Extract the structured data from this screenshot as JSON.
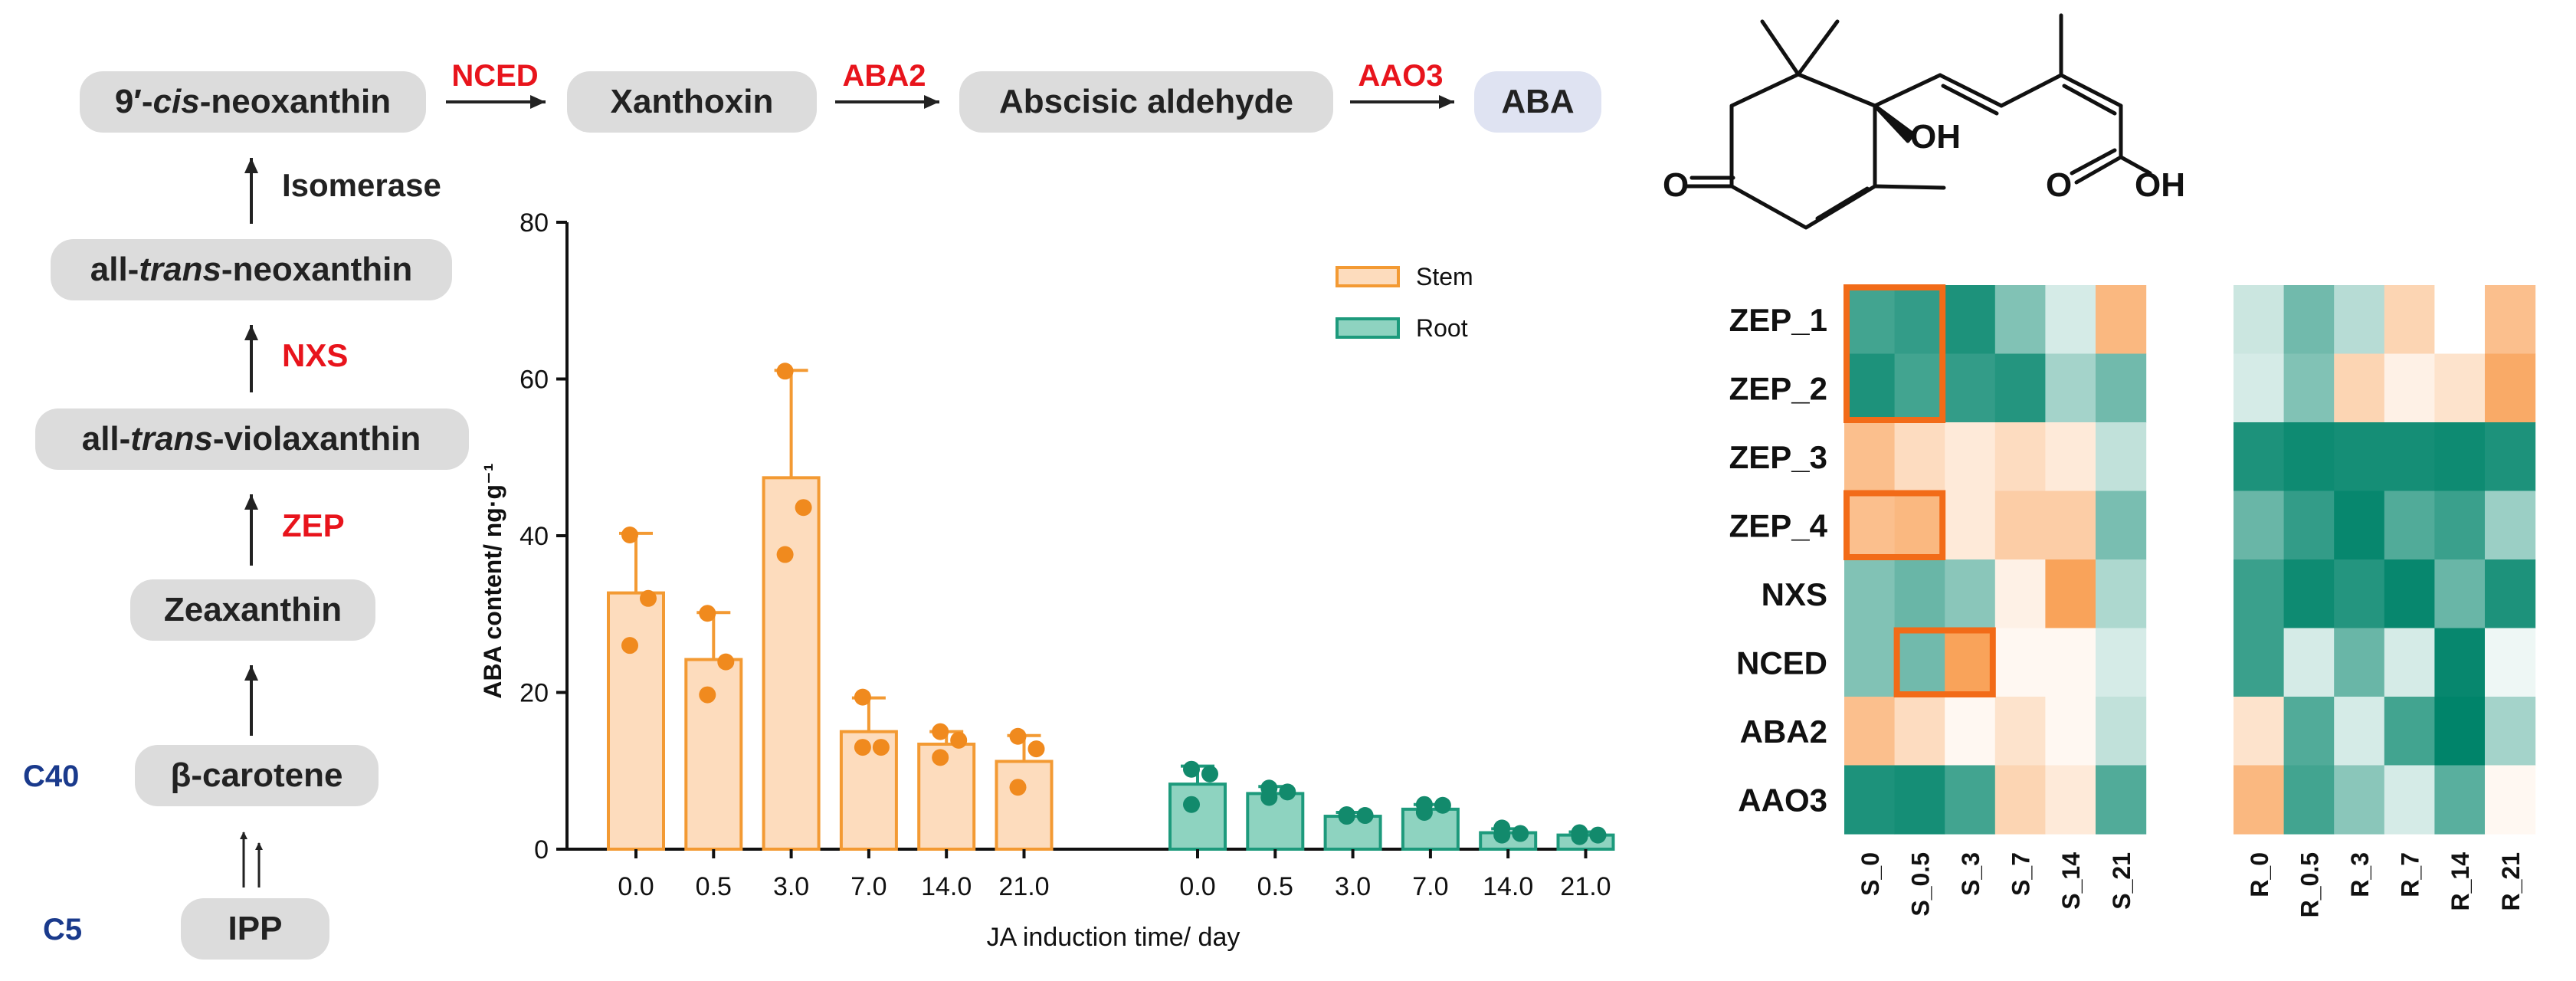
{
  "pathway": {
    "nodes": {
      "neoxanthin_9cis": {
        "pre": "9′-",
        "italic": "cis",
        "post": "-neoxanthin"
      },
      "xanthoxin": {
        "text": "Xanthoxin"
      },
      "abscisic_aldehyde": {
        "text": "Abscisic aldehyde"
      },
      "aba": {
        "text": "ABA"
      },
      "all_trans_neoxanthin": {
        "pre": "all-",
        "italic": "trans",
        "post": "-neoxanthin"
      },
      "all_trans_violaxanthin": {
        "pre": "all-",
        "italic": "trans",
        "post": "-violaxanthin"
      },
      "zeaxanthin": {
        "text": "Zeaxanthin"
      },
      "beta_carotene": {
        "text": "β-carotene"
      },
      "ipp": {
        "text": "IPP"
      }
    },
    "enzymes": {
      "nced": "NCED",
      "aba2": "ABA2",
      "aao3": "AAO3",
      "isomerase": "Isomerase",
      "nxs": "NXS",
      "zep": "ZEP"
    },
    "carbon_labels": {
      "c40": "C40",
      "c5": "C5"
    }
  },
  "structure": {
    "oh_label": "OH",
    "o_label": "O",
    "cooh_o": "O",
    "cooh_oh": "OH"
  },
  "chart_data": [
    {
      "type": "bar",
      "title": "",
      "xlabel": "JA induction time/ day",
      "ylabel": "ABA content/ ng·g⁻¹",
      "ylim": [
        0,
        80
      ],
      "yticks": [
        "0",
        "20",
        "40",
        "60",
        "80"
      ],
      "legend": {
        "placement": "top-right"
      },
      "series": [
        {
          "name": "Stem",
          "categories": [
            "0.0",
            "0.5",
            "3.0",
            "7.0",
            "14.0",
            "21.0"
          ],
          "values": [
            32.7,
            24.2,
            47.4,
            15.0,
            13.4,
            11.2
          ],
          "errors": [
            7.6,
            6.0,
            13.7,
            4.3,
            1.6,
            3.3
          ],
          "points": [
            [
              40.1,
              32.0,
              26.0
            ],
            [
              30.1,
              23.9,
              19.7
            ],
            [
              61.0,
              43.6,
              37.6
            ],
            [
              19.4,
              13.0,
              13.0
            ],
            [
              15.0,
              13.9,
              11.7
            ],
            [
              14.4,
              12.8,
              7.9
            ]
          ],
          "fill": "#fddcbd",
          "stroke": "#f39a33",
          "dot": "#f08a1e"
        },
        {
          "name": "Root",
          "categories": [
            "0.0",
            "0.5",
            "3.0",
            "7.0",
            "14.0",
            "21.0"
          ],
          "values": [
            8.3,
            7.1,
            4.2,
            5.1,
            2.1,
            1.8
          ],
          "errors": [
            2.3,
            0.9,
            0.5,
            0.6,
            0.5,
            0.4
          ],
          "points": [
            [
              10.2,
              9.6,
              5.7
            ],
            [
              7.8,
              7.3,
              6.6
            ],
            [
              4.4,
              4.3,
              4.2
            ],
            [
              5.7,
              5.6,
              4.7
            ],
            [
              2.7,
              2.0,
              1.8
            ],
            [
              2.1,
              1.8,
              1.6
            ]
          ],
          "fill": "#8ed3c0",
          "stroke": "#1d9a7c",
          "dot": "#128a6c"
        }
      ]
    },
    {
      "type": "heatmap",
      "title": "",
      "rows": [
        "ZEP_1",
        "ZEP_2",
        "ZEP_3",
        "ZEP_4",
        "NXS",
        "NCED",
        "ABA2",
        "AAO3"
      ],
      "columns_stem": [
        "S_0",
        "S_0.5",
        "S_3",
        "S_7",
        "S_14",
        "S_21"
      ],
      "columns_root": [
        "R_0",
        "R_0.5",
        "R_3",
        "R_7",
        "R_14",
        "R_21"
      ],
      "scale_note": "per-row z-score; negative = orange, positive = green",
      "stem_values": [
        [
          2.0,
          2.2,
          2.5,
          1.2,
          0.3,
          -1.0
        ],
        [
          2.5,
          2.0,
          2.2,
          2.4,
          0.8,
          1.4
        ],
        [
          -0.9,
          -0.5,
          -0.3,
          -0.5,
          -0.3,
          0.5
        ],
        [
          -0.9,
          -1.0,
          -0.3,
          -0.7,
          -0.7,
          1.3
        ],
        [
          1.2,
          1.5,
          1.1,
          -0.2,
          -1.3,
          0.7
        ],
        [
          1.2,
          1.4,
          -1.3,
          -0.1,
          -0.1,
          0.3
        ],
        [
          -0.9,
          -0.5,
          -0.1,
          -0.4,
          -0.1,
          0.5
        ],
        [
          2.5,
          2.6,
          2.0,
          -0.6,
          -0.3,
          1.8
        ]
      ],
      "root_values": [
        [
          0.4,
          1.4,
          0.6,
          -0.6,
          0.0,
          -0.9
        ],
        [
          0.3,
          1.2,
          -0.6,
          -0.2,
          -0.4,
          -1.2
        ],
        [
          2.5,
          2.7,
          2.6,
          2.6,
          2.7,
          2.5
        ],
        [
          1.5,
          2.2,
          2.8,
          1.8,
          2.1,
          0.9
        ],
        [
          2.1,
          2.7,
          2.4,
          2.8,
          1.5,
          2.5
        ],
        [
          2.1,
          0.3,
          1.5,
          0.3,
          2.8,
          0.1
        ],
        [
          -0.4,
          1.8,
          0.3,
          2.0,
          2.9,
          0.8
        ],
        [
          -1.0,
          2.0,
          1.1,
          0.3,
          1.7,
          -0.1
        ]
      ],
      "highlights": [
        {
          "panel": "stem",
          "rows": [
            "ZEP_1",
            "ZEP_2"
          ],
          "columns": [
            "S_0",
            "S_0.5"
          ]
        },
        {
          "panel": "stem",
          "rows": [
            "ZEP_4"
          ],
          "columns": [
            "S_0",
            "S_0.5"
          ]
        },
        {
          "panel": "stem",
          "rows": [
            "NCED"
          ],
          "columns": [
            "S_0.5",
            "S_3"
          ]
        }
      ],
      "colors": {
        "low": "#f9a35a",
        "mid": "#ffffff",
        "high": "#00846a",
        "highlight": "#f26b18"
      }
    }
  ]
}
